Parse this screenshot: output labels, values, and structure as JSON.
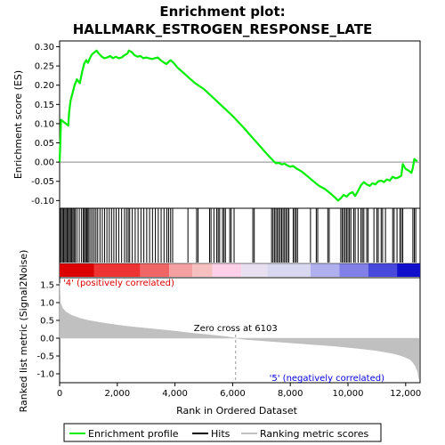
{
  "chart_data": {
    "type": "line",
    "title": "Enrichment plot:",
    "subtitle": "HALLMARK_ESTROGEN_RESPONSE_LATE",
    "xlabel": "Rank in Ordered Dataset",
    "xlim": [
      0,
      12500
    ],
    "x_ticks": [
      {
        "value": 0,
        "label": "0"
      },
      {
        "value": 2000,
        "label": "2,000"
      },
      {
        "value": 4000,
        "label": "4,000"
      },
      {
        "value": 6000,
        "label": "6,000"
      },
      {
        "value": 8000,
        "label": "8,000"
      },
      {
        "value": 10000,
        "label": "10,000"
      },
      {
        "value": 12000,
        "label": "12,000"
      }
    ],
    "es_panel": {
      "ylabel": "Enrichment score (ES)",
      "ylim": [
        -0.12,
        0.315
      ],
      "y_ticks": [
        {
          "value": -0.1,
          "label": "-0.10"
        },
        {
          "value": -0.05,
          "label": "-0.05"
        },
        {
          "value": 0.0,
          "label": "0.00"
        },
        {
          "value": 0.05,
          "label": "0.05"
        },
        {
          "value": 0.1,
          "label": "0.10"
        },
        {
          "value": 0.15,
          "label": "0.15"
        },
        {
          "value": 0.2,
          "label": "0.20"
        },
        {
          "value": 0.25,
          "label": "0.25"
        },
        {
          "value": 0.3,
          "label": "0.30"
        }
      ],
      "zero_line": 0,
      "series": {
        "name": "Enrichment profile",
        "color": "#00ee00",
        "x": [
          0,
          50,
          300,
          330,
          380,
          450,
          520,
          600,
          700,
          780,
          850,
          920,
          980,
          1050,
          1120,
          1200,
          1280,
          1350,
          1450,
          1550,
          1650,
          1750,
          1850,
          1950,
          2050,
          2150,
          2250,
          2350,
          2400,
          2500,
          2600,
          2700,
          2800,
          2900,
          3000,
          3100,
          3200,
          3300,
          3400,
          3500,
          3600,
          3700,
          3800,
          3850,
          3950,
          4100,
          4300,
          4500,
          4700,
          4800,
          5000,
          5200,
          5400,
          5600,
          5800,
          6000,
          6200,
          6400,
          6600,
          6800,
          7000,
          7200,
          7400,
          7500,
          7600,
          7700,
          7800,
          7900,
          8000,
          8100,
          8200,
          8400,
          8600,
          8800,
          9000,
          9200,
          9400,
          9550,
          9650,
          9750,
          9850,
          9950,
          10050,
          10150,
          10250,
          10350,
          10450,
          10550,
          10650,
          10750,
          10850,
          10950,
          11050,
          11150,
          11250,
          11350,
          11450,
          11550,
          11650,
          11750,
          11850,
          11900,
          12000,
          12100,
          12200,
          12250,
          12300,
          12400
        ],
        "y": [
          0.0,
          0.11,
          0.095,
          0.13,
          0.16,
          0.18,
          0.2,
          0.215,
          0.205,
          0.235,
          0.255,
          0.265,
          0.258,
          0.27,
          0.28,
          0.285,
          0.29,
          0.283,
          0.275,
          0.27,
          0.272,
          0.276,
          0.27,
          0.274,
          0.27,
          0.272,
          0.278,
          0.282,
          0.29,
          0.286,
          0.278,
          0.274,
          0.276,
          0.27,
          0.272,
          0.27,
          0.268,
          0.27,
          0.272,
          0.265,
          0.26,
          0.255,
          0.262,
          0.265,
          0.258,
          0.245,
          0.232,
          0.218,
          0.205,
          0.2,
          0.19,
          0.176,
          0.162,
          0.148,
          0.134,
          0.12,
          0.104,
          0.088,
          0.071,
          0.054,
          0.037,
          0.02,
          0.004,
          -0.003,
          -0.002,
          -0.006,
          -0.004,
          -0.009,
          -0.012,
          -0.01,
          -0.016,
          -0.025,
          -0.037,
          -0.05,
          -0.062,
          -0.07,
          -0.082,
          -0.092,
          -0.1,
          -0.094,
          -0.085,
          -0.09,
          -0.082,
          -0.078,
          -0.088,
          -0.075,
          -0.06,
          -0.052,
          -0.058,
          -0.062,
          -0.055,
          -0.058,
          -0.05,
          -0.048,
          -0.052,
          -0.045,
          -0.048,
          -0.038,
          -0.042,
          -0.04,
          -0.035,
          -0.005,
          -0.018,
          -0.022,
          -0.028,
          -0.015,
          0.008,
          0.002
        ]
      }
    },
    "hits_panel": {
      "legend_name": "Hits",
      "hit_ranks": [
        20,
        60,
        100,
        140,
        180,
        220,
        260,
        300,
        340,
        380,
        420,
        460,
        500,
        540,
        600,
        680,
        760,
        820,
        860,
        900,
        940,
        980,
        1020,
        1080,
        1140,
        1200,
        1260,
        1320,
        1400,
        1480,
        1560,
        1640,
        1720,
        1800,
        1880,
        1960,
        2050,
        2150,
        2250,
        2320,
        2380,
        2430,
        2520,
        2620,
        2720,
        2820,
        2920,
        3020,
        3120,
        3220,
        3320,
        3420,
        3520,
        3620,
        3720,
        3780,
        3850,
        3920,
        4450,
        4750,
        4800,
        5200,
        5250,
        5350,
        5450,
        5500,
        5550,
        5650,
        5700,
        5750,
        5900,
        5950,
        6050,
        6700,
        6750,
        7350,
        7400,
        7450,
        7500,
        7550,
        7600,
        7650,
        7700,
        7750,
        7800,
        7850,
        7900,
        7950,
        8100,
        8150,
        8200,
        8250,
        8700,
        8900,
        8950,
        9300,
        9350,
        9750,
        9800,
        9850,
        9900,
        9950,
        10000,
        10050,
        10100,
        10200,
        10250,
        10350,
        10450,
        10500,
        10550,
        10650,
        10700,
        10900,
        11000,
        11050,
        11150,
        11200,
        11300,
        11550,
        11600,
        11700,
        11800,
        11850,
        11900,
        12250,
        12300,
        12350
      ]
    },
    "heatmap_bar": {
      "colors_left_to_right": [
        "#dd0000",
        "#ee3333",
        "#f06666",
        "#f4a0a0",
        "#f7c0c0",
        "#ffd0e8",
        "#e8e0f0",
        "#d8d8f0",
        "#b0b0ee",
        "#8080e8",
        "#4848dd",
        "#1010cc"
      ],
      "boundaries": [
        0,
        1200,
        2800,
        3800,
        4600,
        5300,
        6300,
        7200,
        8700,
        9700,
        10700,
        11700,
        12500
      ]
    },
    "metric_panel": {
      "ylabel": "Ranked list metric (Signal2Noise)",
      "ylim": [
        -1.25,
        1.7
      ],
      "y_ticks": [
        {
          "value": -1.0,
          "label": "-1.0"
        },
        {
          "value": -0.5,
          "label": "-0.5"
        },
        {
          "value": 0.0,
          "label": "0.0"
        },
        {
          "value": 0.5,
          "label": "0.5"
        },
        {
          "value": 1.0,
          "label": "1.0"
        },
        {
          "value": 1.5,
          "label": "1.5"
        }
      ],
      "series": {
        "name": "Ranking metric scores",
        "color": "#c0c0c0",
        "x": [
          0,
          30,
          100,
          200,
          400,
          700,
          1000,
          1500,
          2000,
          2500,
          3000,
          3500,
          4000,
          4500,
          5000,
          5500,
          6000,
          6103,
          6500,
          7000,
          7500,
          8000,
          8500,
          9000,
          9500,
          10000,
          10500,
          11000,
          11500,
          11800,
          12000,
          12150,
          12250,
          12350,
          12420,
          12460
        ],
        "y": [
          1.55,
          1.0,
          0.85,
          0.75,
          0.65,
          0.56,
          0.5,
          0.43,
          0.37,
          0.32,
          0.28,
          0.24,
          0.2,
          0.15,
          0.11,
          0.07,
          0.02,
          0.0,
          -0.04,
          -0.07,
          -0.1,
          -0.13,
          -0.16,
          -0.19,
          -0.22,
          -0.26,
          -0.3,
          -0.35,
          -0.42,
          -0.48,
          -0.54,
          -0.6,
          -0.68,
          -0.8,
          -0.95,
          -1.15
        ]
      },
      "zero_cross_rank": 6103,
      "zero_cross_label": "Zero cross at 6103",
      "positive_label": "'4' (positively correlated)",
      "negative_label": "'5' (negatively correlated)",
      "positive_color": "#dd0000",
      "negative_color": "#0000dd"
    },
    "legend": {
      "placement": "bottom",
      "items": [
        {
          "label": "Enrichment profile",
          "color": "#00ee00"
        },
        {
          "label": "Hits",
          "color": "#000000"
        },
        {
          "label": "Ranking metric scores",
          "color": "#c0c0c0"
        }
      ]
    }
  }
}
